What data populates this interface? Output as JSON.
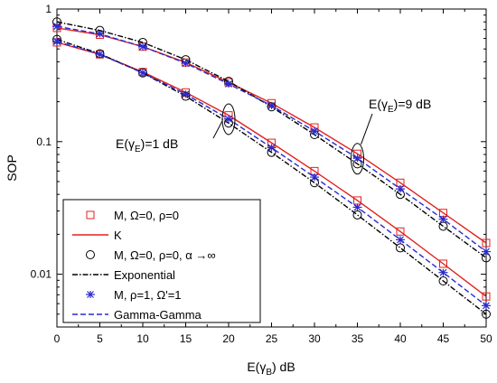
{
  "chart_data": {
    "type": "line",
    "xlabel": "E(γB) dB",
    "ylabel": "SOP",
    "xlim": [
      0,
      50
    ],
    "ylim": [
      0.004,
      1
    ],
    "yscale": "log",
    "grid": false,
    "legend_position": "bottom-left",
    "x_ticks": [
      0,
      5,
      10,
      15,
      20,
      25,
      30,
      35,
      40,
      45,
      50
    ],
    "y_ticks": [
      {
        "value": 1,
        "label": "1"
      },
      {
        "value": 0.1,
        "label": "0.1"
      },
      {
        "value": 0.01,
        "label": "0.01"
      }
    ],
    "annotations": [
      {
        "text_main": "E(γ",
        "text_sub": "E",
        "text_end": ")=9 dB",
        "group": "9 dB"
      },
      {
        "text_main": "E(γ",
        "text_sub": "E",
        "text_end": ")=1 dB",
        "group": "1 dB"
      }
    ],
    "series": [
      {
        "name": "M, Ω=0, ρ=0",
        "style": "marker-square",
        "color": "#e0221f",
        "group": "9 dB",
        "x": [
          0,
          5,
          10,
          15,
          20,
          25,
          30,
          35,
          40,
          45,
          50
        ],
        "values": [
          0.72,
          0.64,
          0.52,
          0.395,
          0.28,
          0.195,
          0.128,
          0.081,
          0.049,
          0.029,
          0.0172
        ]
      },
      {
        "name": "K",
        "style": "line-solid",
        "color": "#e0221f",
        "group": "9 dB",
        "x": [
          0,
          5,
          10,
          15,
          20,
          25,
          30,
          35,
          40,
          45,
          50
        ],
        "values": [
          0.72,
          0.64,
          0.52,
          0.395,
          0.28,
          0.195,
          0.128,
          0.081,
          0.049,
          0.029,
          0.0172
        ]
      },
      {
        "name": "M, Ω=0, ρ=0, α →∞",
        "style": "marker-circle",
        "color": "#000000",
        "group": "9 dB",
        "x": [
          0,
          5,
          10,
          15,
          20,
          25,
          30,
          35,
          40,
          45,
          50
        ],
        "values": [
          0.8,
          0.69,
          0.56,
          0.415,
          0.285,
          0.183,
          0.113,
          0.068,
          0.04,
          0.023,
          0.0133
        ]
      },
      {
        "name": "Exponential",
        "style": "line-dashdot",
        "color": "#000000",
        "group": "9 dB",
        "x": [
          0,
          5,
          10,
          15,
          20,
          25,
          30,
          35,
          40,
          45,
          50
        ],
        "values": [
          0.8,
          0.69,
          0.56,
          0.415,
          0.285,
          0.183,
          0.113,
          0.068,
          0.04,
          0.023,
          0.0133
        ]
      },
      {
        "name": "M, ρ=1, Ω'=1",
        "style": "marker-star",
        "color": "#2a2ad0",
        "group": "9 dB",
        "x": [
          0,
          5,
          10,
          15,
          20,
          25,
          30,
          35,
          40,
          45,
          50
        ],
        "values": [
          0.74,
          0.65,
          0.52,
          0.39,
          0.272,
          0.187,
          0.12,
          0.075,
          0.044,
          0.026,
          0.0148
        ]
      },
      {
        "name": "Gamma-Gamma",
        "style": "line-dashed",
        "color": "#2a2ad0",
        "group": "9 dB",
        "x": [
          0,
          5,
          10,
          15,
          20,
          25,
          30,
          35,
          40,
          45,
          50
        ],
        "values": [
          0.74,
          0.65,
          0.52,
          0.39,
          0.272,
          0.187,
          0.12,
          0.075,
          0.044,
          0.026,
          0.0148
        ]
      },
      {
        "style": "marker-square",
        "color": "#e0221f",
        "group": "1 dB",
        "x": [
          0,
          5,
          10,
          15,
          20,
          25,
          30,
          35,
          40,
          45,
          50
        ],
        "values": [
          0.56,
          0.455,
          0.335,
          0.235,
          0.158,
          0.098,
          0.06,
          0.036,
          0.021,
          0.012,
          0.0068
        ]
      },
      {
        "style": "line-solid",
        "color": "#e0221f",
        "group": "1 dB",
        "x": [
          0,
          5,
          10,
          15,
          20,
          25,
          30,
          35,
          40,
          45,
          50
        ],
        "values": [
          0.56,
          0.455,
          0.335,
          0.235,
          0.158,
          0.098,
          0.06,
          0.036,
          0.021,
          0.012,
          0.0068
        ]
      },
      {
        "style": "marker-circle",
        "color": "#000000",
        "group": "1 dB",
        "x": [
          0,
          5,
          10,
          15,
          20,
          25,
          30,
          35,
          40,
          45,
          50
        ],
        "values": [
          0.59,
          0.46,
          0.33,
          0.22,
          0.138,
          0.083,
          0.049,
          0.028,
          0.0158,
          0.0089,
          0.005
        ]
      },
      {
        "style": "line-dashdot",
        "color": "#000000",
        "group": "1 dB",
        "x": [
          0,
          5,
          10,
          15,
          20,
          25,
          30,
          35,
          40,
          45,
          50
        ],
        "values": [
          0.59,
          0.46,
          0.33,
          0.22,
          0.138,
          0.083,
          0.049,
          0.028,
          0.0158,
          0.0089,
          0.005
        ]
      },
      {
        "style": "marker-star",
        "color": "#2a2ad0",
        "group": "1 dB",
        "x": [
          0,
          5,
          10,
          15,
          20,
          25,
          30,
          35,
          40,
          45,
          50
        ],
        "values": [
          0.57,
          0.455,
          0.33,
          0.228,
          0.148,
          0.09,
          0.054,
          0.032,
          0.0182,
          0.0103,
          0.0058
        ]
      },
      {
        "style": "line-dashed",
        "color": "#2a2ad0",
        "group": "1 dB",
        "x": [
          0,
          5,
          10,
          15,
          20,
          25,
          30,
          35,
          40,
          45,
          50
        ],
        "values": [
          0.57,
          0.455,
          0.33,
          0.228,
          0.148,
          0.09,
          0.054,
          0.032,
          0.0182,
          0.0103,
          0.0058
        ]
      }
    ],
    "legend": [
      {
        "label": "M, Ω=0, ρ=0",
        "style": "marker-square",
        "color": "#e0221f"
      },
      {
        "label": "K",
        "style": "line-solid",
        "color": "#e0221f"
      },
      {
        "label": "M, Ω=0, ρ=0, α →∞",
        "style": "marker-circle",
        "color": "#000000"
      },
      {
        "label": "Exponential",
        "style": "line-dashdot",
        "color": "#000000"
      },
      {
        "label": "M, ρ=1, Ω'=1",
        "style": "marker-star",
        "color": "#2a2ad0"
      },
      {
        "label": "Gamma-Gamma",
        "style": "line-dashed",
        "color": "#2a2ad0"
      }
    ]
  }
}
